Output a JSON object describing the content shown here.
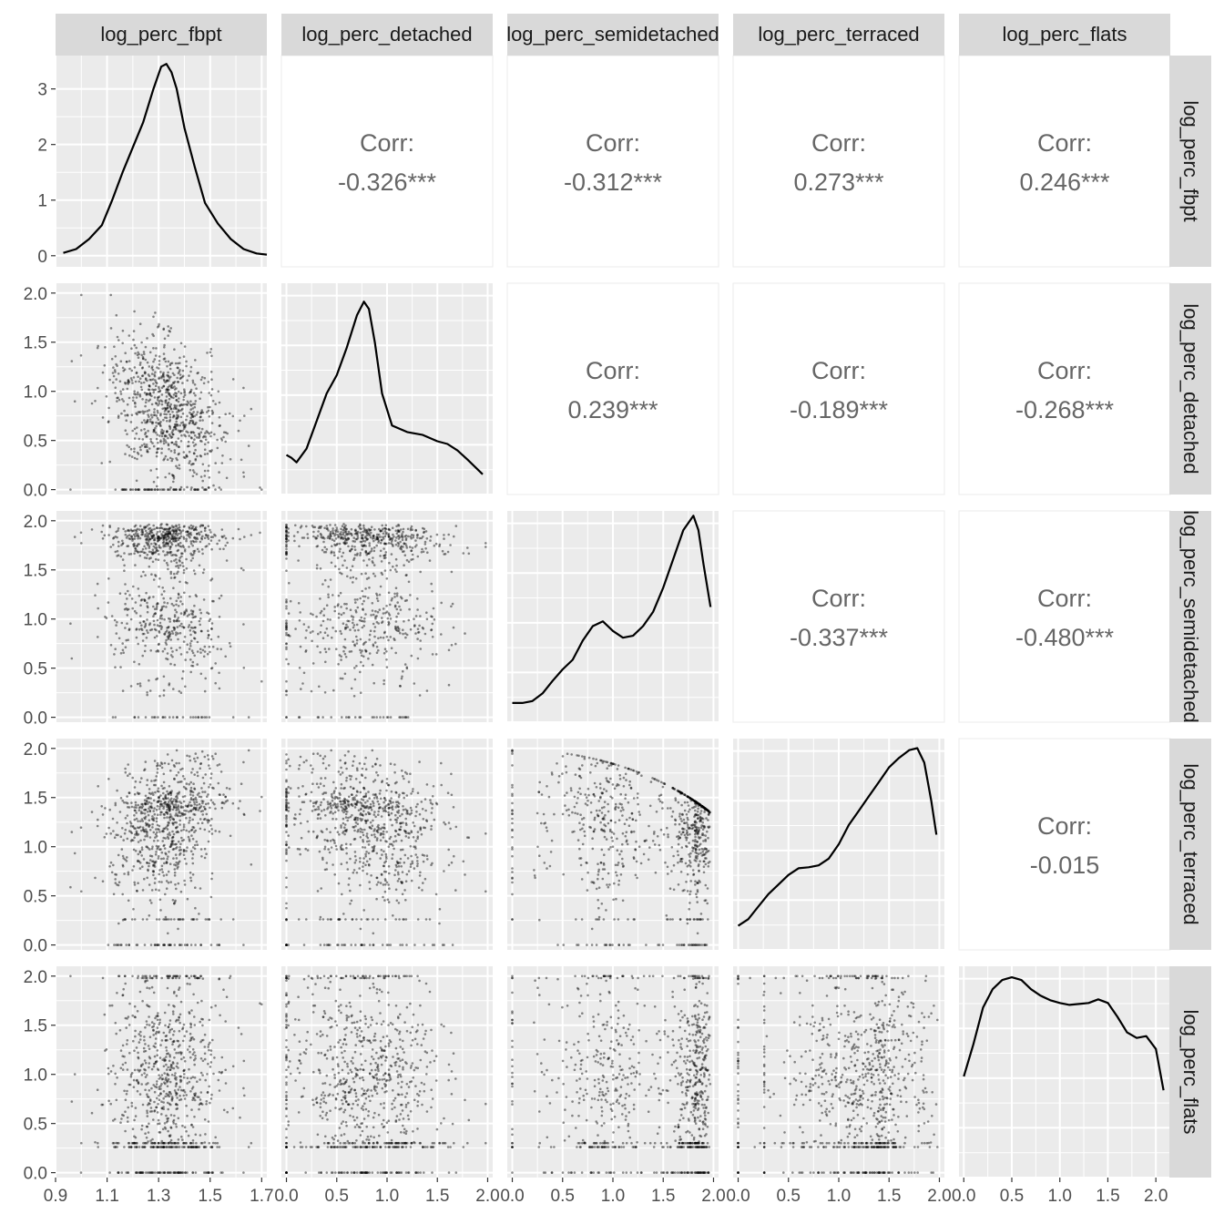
{
  "chart_data": {
    "type": "scatter-matrix",
    "variables": [
      "log_perc_fbpt",
      "log_perc_detached",
      "log_perc_semidetached",
      "log_perc_terraced",
      "log_perc_flats"
    ],
    "correlations": [
      {
        "row": 0,
        "col": 1,
        "label": "Corr:",
        "value": "-0.326***"
      },
      {
        "row": 0,
        "col": 2,
        "label": "Corr:",
        "value": "-0.312***"
      },
      {
        "row": 0,
        "col": 3,
        "label": "Corr:",
        "value": "0.273***"
      },
      {
        "row": 0,
        "col": 4,
        "label": "Corr:",
        "value": "0.246***"
      },
      {
        "row": 1,
        "col": 2,
        "label": "Corr:",
        "value": "0.239***"
      },
      {
        "row": 1,
        "col": 3,
        "label": "Corr:",
        "value": "-0.189***"
      },
      {
        "row": 1,
        "col": 4,
        "label": "Corr:",
        "value": "-0.268***"
      },
      {
        "row": 2,
        "col": 3,
        "label": "Corr:",
        "value": "-0.337***"
      },
      {
        "row": 2,
        "col": 4,
        "label": "Corr:",
        "value": "-0.480***"
      },
      {
        "row": 3,
        "col": 4,
        "label": "Corr:",
        "value": "-0.015"
      }
    ],
    "x_axes": [
      {
        "lim": [
          0.9,
          1.72
        ],
        "ticks": [
          0.9,
          1.1,
          1.3,
          1.5,
          1.7
        ],
        "tick_labels": [
          "0.9",
          "1.1",
          "1.3",
          "1.5",
          "1.7"
        ]
      },
      {
        "lim": [
          -0.05,
          2.05
        ],
        "ticks": [
          0.0,
          0.5,
          1.0,
          1.5,
          2.0
        ],
        "tick_labels": [
          "0.0",
          "0.5",
          "1.0",
          "1.5",
          "2.0"
        ]
      },
      {
        "lim": [
          -0.05,
          2.05
        ],
        "ticks": [
          0.0,
          0.5,
          1.0,
          1.5,
          2.0
        ],
        "tick_labels": [
          "0.0",
          "0.5",
          "1.0",
          "1.5",
          "2.0"
        ]
      },
      {
        "lim": [
          -0.05,
          2.05
        ],
        "ticks": [
          0.0,
          0.5,
          1.0,
          1.5,
          2.0
        ],
        "tick_labels": [
          "0.0",
          "0.5",
          "1.0",
          "1.5",
          "2.0"
        ]
      },
      {
        "lim": [
          -0.05,
          2.15
        ],
        "ticks": [
          0.0,
          0.5,
          1.0,
          1.5,
          2.0
        ],
        "tick_labels": [
          "0.0",
          "0.5",
          "1.0",
          "1.5",
          "2.0"
        ]
      }
    ],
    "y_axes": [
      {
        "lim": [
          -0.2,
          3.6
        ],
        "ticks": [
          0,
          1,
          2,
          3
        ],
        "tick_labels": [
          "0",
          "1",
          "2",
          "3"
        ]
      },
      {
        "lim": [
          -0.05,
          2.1
        ],
        "ticks": [
          0.0,
          0.5,
          1.0,
          1.5,
          2.0
        ],
        "tick_labels": [
          "0.0",
          "0.5",
          "1.0",
          "1.5",
          "2.0"
        ]
      },
      {
        "lim": [
          -0.05,
          2.1
        ],
        "ticks": [
          0.0,
          0.5,
          1.0,
          1.5,
          2.0
        ],
        "tick_labels": [
          "0.0",
          "0.5",
          "1.0",
          "1.5",
          "2.0"
        ]
      },
      {
        "lim": [
          -0.05,
          2.1
        ],
        "ticks": [
          0.0,
          0.5,
          1.0,
          1.5,
          2.0
        ],
        "tick_labels": [
          "0.0",
          "0.5",
          "1.0",
          "1.5",
          "2.0"
        ]
      },
      {
        "lim": [
          -0.05,
          2.1
        ],
        "ticks": [
          0.0,
          0.5,
          1.0,
          1.5,
          2.0
        ],
        "tick_labels": [
          "0.0",
          "0.5",
          "1.0",
          "1.5",
          "2.0"
        ]
      }
    ],
    "densities": [
      {
        "var": "log_perc_fbpt",
        "x": [
          0.93,
          0.98,
          1.03,
          1.08,
          1.12,
          1.16,
          1.2,
          1.24,
          1.28,
          1.31,
          1.33,
          1.35,
          1.37,
          1.4,
          1.44,
          1.48,
          1.53,
          1.58,
          1.63,
          1.68,
          1.72
        ],
        "y": [
          0.05,
          0.12,
          0.3,
          0.55,
          1.0,
          1.5,
          1.95,
          2.4,
          3.0,
          3.4,
          3.45,
          3.3,
          3.0,
          2.3,
          1.6,
          0.95,
          0.58,
          0.3,
          0.12,
          0.04,
          0.02
        ]
      },
      {
        "var": "log_perc_detached",
        "y_scale": [
          0,
          2.2
        ],
        "x": [
          0.0,
          0.05,
          0.1,
          0.2,
          0.3,
          0.4,
          0.5,
          0.6,
          0.7,
          0.77,
          0.82,
          0.88,
          0.95,
          1.05,
          1.2,
          1.35,
          1.5,
          1.6,
          1.7,
          1.8,
          1.95
        ],
        "y": [
          0.33,
          0.3,
          0.25,
          0.4,
          0.7,
          1.0,
          1.2,
          1.5,
          1.85,
          2.0,
          1.92,
          1.55,
          1.0,
          0.65,
          0.58,
          0.55,
          0.48,
          0.45,
          0.38,
          0.28,
          0.12
        ]
      },
      {
        "var": "log_perc_semidetached",
        "y_scale": [
          0,
          2.1
        ],
        "x": [
          0.0,
          0.1,
          0.2,
          0.3,
          0.4,
          0.5,
          0.6,
          0.7,
          0.8,
          0.9,
          1.0,
          1.1,
          1.2,
          1.3,
          1.4,
          1.5,
          1.6,
          1.7,
          1.8,
          1.85,
          1.9,
          1.97
        ],
        "y": [
          0.1,
          0.1,
          0.12,
          0.2,
          0.33,
          0.45,
          0.55,
          0.75,
          0.9,
          0.95,
          0.85,
          0.78,
          0.8,
          0.9,
          1.05,
          1.3,
          1.6,
          1.9,
          2.05,
          1.9,
          1.55,
          1.1
        ]
      },
      {
        "var": "log_perc_terraced",
        "y_scale": [
          0,
          2.1
        ],
        "x": [
          0.0,
          0.1,
          0.2,
          0.3,
          0.4,
          0.5,
          0.6,
          0.7,
          0.8,
          0.9,
          1.0,
          1.1,
          1.2,
          1.3,
          1.4,
          1.5,
          1.6,
          1.7,
          1.78,
          1.85,
          1.92,
          1.97
        ],
        "y": [
          0.15,
          0.22,
          0.35,
          0.48,
          0.58,
          0.68,
          0.75,
          0.76,
          0.78,
          0.85,
          1.0,
          1.2,
          1.35,
          1.5,
          1.65,
          1.8,
          1.9,
          1.98,
          2.0,
          1.85,
          1.45,
          1.1
        ]
      },
      {
        "var": "log_perc_flats",
        "y_scale": [
          0,
          2.2
        ],
        "x": [
          0.0,
          0.1,
          0.2,
          0.3,
          0.4,
          0.5,
          0.6,
          0.7,
          0.8,
          0.9,
          1.0,
          1.1,
          1.2,
          1.3,
          1.4,
          1.5,
          1.6,
          1.7,
          1.8,
          1.9,
          2.0,
          2.08
        ],
        "y": [
          1.0,
          1.35,
          1.75,
          1.95,
          2.05,
          2.08,
          2.05,
          1.95,
          1.88,
          1.83,
          1.8,
          1.78,
          1.79,
          1.8,
          1.84,
          1.8,
          1.65,
          1.48,
          1.42,
          1.44,
          1.3,
          0.85
        ]
      }
    ],
    "grid": true,
    "point_color": "#000000",
    "panel_background": "#ebebeb",
    "strip_background": "#d9d9d9"
  }
}
